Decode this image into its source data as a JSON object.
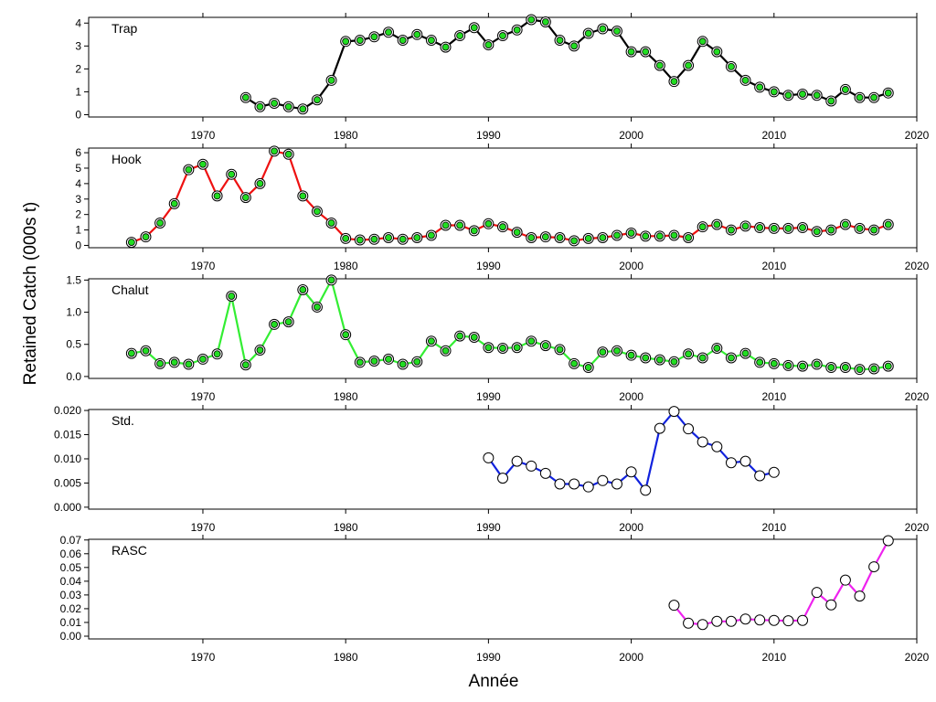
{
  "chart_data": {
    "type": "line",
    "ylabel": "Retained Catch (000s t)",
    "xlabel": "Année",
    "xlim": [
      1962,
      2020
    ],
    "xticks": [
      1970,
      1980,
      1990,
      2000,
      2010,
      2020
    ],
    "panels": [
      {
        "name": "Trap",
        "color": "#000000",
        "point_fill": "#22dd22",
        "ylim": [
          -0.1,
          4.25
        ],
        "yticks": [
          0,
          1,
          2,
          3,
          4
        ],
        "ytick_labels": [
          "0",
          "1",
          "2",
          "3",
          "4"
        ],
        "x": [
          1973,
          1974,
          1975,
          1976,
          1977,
          1978,
          1979,
          1980,
          1981,
          1982,
          1983,
          1984,
          1985,
          1986,
          1987,
          1988,
          1989,
          1990,
          1991,
          1992,
          1993,
          1994,
          1995,
          1996,
          1997,
          1998,
          1999,
          2000,
          2001,
          2002,
          2003,
          2004,
          2005,
          2006,
          2007,
          2008,
          2009,
          2010,
          2011,
          2012,
          2013,
          2014,
          2015,
          2016,
          2017,
          2018
        ],
        "y": [
          0.75,
          0.35,
          0.5,
          0.35,
          0.25,
          0.65,
          1.5,
          3.2,
          3.25,
          3.4,
          3.6,
          3.25,
          3.5,
          3.25,
          2.95,
          3.45,
          3.8,
          3.05,
          3.45,
          3.7,
          4.15,
          4.05,
          3.25,
          3.0,
          3.55,
          3.75,
          3.65,
          2.75,
          2.75,
          2.15,
          1.45,
          2.15,
          3.2,
          2.75,
          2.1,
          1.5,
          1.2,
          1.0,
          0.85,
          0.9,
          0.85,
          0.6,
          1.1,
          0.75,
          0.75,
          0.95
        ]
      },
      {
        "name": "Hook",
        "color": "#ee1111",
        "point_fill": "#22dd22",
        "ylim": [
          -0.15,
          6.3
        ],
        "yticks": [
          0,
          1,
          2,
          3,
          4,
          5,
          6
        ],
        "ytick_labels": [
          "0",
          "1",
          "2",
          "3",
          "4",
          "5",
          "6"
        ],
        "x": [
          1965,
          1966,
          1967,
          1968,
          1969,
          1970,
          1971,
          1972,
          1973,
          1974,
          1975,
          1976,
          1977,
          1978,
          1979,
          1980,
          1981,
          1982,
          1983,
          1984,
          1985,
          1986,
          1987,
          1988,
          1989,
          1990,
          1991,
          1992,
          1993,
          1994,
          1995,
          1996,
          1997,
          1998,
          1999,
          2000,
          2001,
          2002,
          2003,
          2004,
          2005,
          2006,
          2007,
          2008,
          2009,
          2010,
          2011,
          2012,
          2013,
          2014,
          2015,
          2016,
          2017,
          2018
        ],
        "y": [
          0.2,
          0.55,
          1.45,
          2.7,
          4.9,
          5.25,
          3.2,
          4.6,
          3.1,
          4.0,
          6.1,
          5.9,
          3.2,
          2.2,
          1.45,
          0.45,
          0.35,
          0.4,
          0.5,
          0.4,
          0.5,
          0.65,
          1.3,
          1.3,
          0.95,
          1.4,
          1.2,
          0.85,
          0.5,
          0.55,
          0.5,
          0.3,
          0.45,
          0.5,
          0.65,
          0.8,
          0.6,
          0.6,
          0.65,
          0.5,
          1.2,
          1.35,
          1.0,
          1.25,
          1.15,
          1.1,
          1.1,
          1.15,
          0.9,
          1.0,
          1.35,
          1.1,
          1.0,
          1.35
        ]
      },
      {
        "name": "Chalut",
        "color": "#33ee33",
        "point_fill": "#22dd22",
        "ylim": [
          -0.03,
          1.52
        ],
        "yticks": [
          0.0,
          0.5,
          1.0,
          1.5
        ],
        "ytick_labels": [
          "0.0",
          "0.5",
          "1.0",
          "1.5"
        ],
        "x": [
          1965,
          1966,
          1967,
          1968,
          1969,
          1970,
          1971,
          1972,
          1973,
          1974,
          1975,
          1976,
          1977,
          1978,
          1979,
          1980,
          1981,
          1982,
          1983,
          1984,
          1985,
          1986,
          1987,
          1988,
          1989,
          1990,
          1991,
          1992,
          1993,
          1994,
          1995,
          1996,
          1997,
          1998,
          1999,
          2000,
          2001,
          2002,
          2003,
          2004,
          2005,
          2006,
          2007,
          2008,
          2009,
          2010,
          2011,
          2012,
          2013,
          2014,
          2015,
          2016,
          2017,
          2018
        ],
        "y": [
          0.36,
          0.4,
          0.2,
          0.22,
          0.19,
          0.27,
          0.35,
          1.25,
          0.18,
          0.41,
          0.81,
          0.85,
          1.35,
          1.08,
          1.5,
          0.65,
          0.22,
          0.24,
          0.27,
          0.19,
          0.23,
          0.55,
          0.4,
          0.63,
          0.61,
          0.45,
          0.44,
          0.45,
          0.55,
          0.48,
          0.42,
          0.2,
          0.14,
          0.38,
          0.4,
          0.33,
          0.29,
          0.26,
          0.23,
          0.35,
          0.29,
          0.44,
          0.29,
          0.36,
          0.22,
          0.2,
          0.17,
          0.16,
          0.19,
          0.14,
          0.14,
          0.11,
          0.12,
          0.16
        ]
      },
      {
        "name": "Std.",
        "color": "#1122dd",
        "point_fill": "#ffffff",
        "ylim": [
          -0.0004,
          0.0202
        ],
        "yticks": [
          0.0,
          0.005,
          0.01,
          0.015,
          0.02
        ],
        "ytick_labels": [
          "0.000",
          "0.005",
          "0.010",
          "0.015",
          "0.020"
        ],
        "x": [
          1990,
          1991,
          1992,
          1993,
          1994,
          1995,
          1996,
          1997,
          1998,
          1999,
          2000,
          2001,
          2002,
          2003,
          2004,
          2005,
          2006,
          2007,
          2008,
          2009,
          2010
        ],
        "y": [
          0.0102,
          0.006,
          0.0095,
          0.0085,
          0.007,
          0.0048,
          0.0048,
          0.0042,
          0.0055,
          0.0048,
          0.0073,
          0.0035,
          0.0163,
          0.0198,
          0.0162,
          0.0135,
          0.0125,
          0.0092,
          0.0095,
          0.0065,
          0.0072
        ]
      },
      {
        "name": "RASC",
        "color": "#ee22ee",
        "point_fill": "#ffffff",
        "ylim": [
          -0.002,
          0.0705
        ],
        "yticks": [
          0.0,
          0.01,
          0.02,
          0.03,
          0.04,
          0.05,
          0.06,
          0.07
        ],
        "ytick_labels": [
          "0.00",
          "0.01",
          "0.02",
          "0.03",
          "0.04",
          "0.05",
          "0.06",
          "0.07"
        ],
        "x": [
          2003,
          2004,
          2005,
          2006,
          2007,
          2008,
          2009,
          2010,
          2011,
          2012,
          2013,
          2014,
          2015,
          2016,
          2017,
          2018
        ],
        "y": [
          0.0225,
          0.0095,
          0.0085,
          0.0108,
          0.0108,
          0.0125,
          0.0118,
          0.0115,
          0.0112,
          0.0115,
          0.0318,
          0.0228,
          0.0408,
          0.0292,
          0.0505,
          0.0695
        ]
      }
    ]
  }
}
